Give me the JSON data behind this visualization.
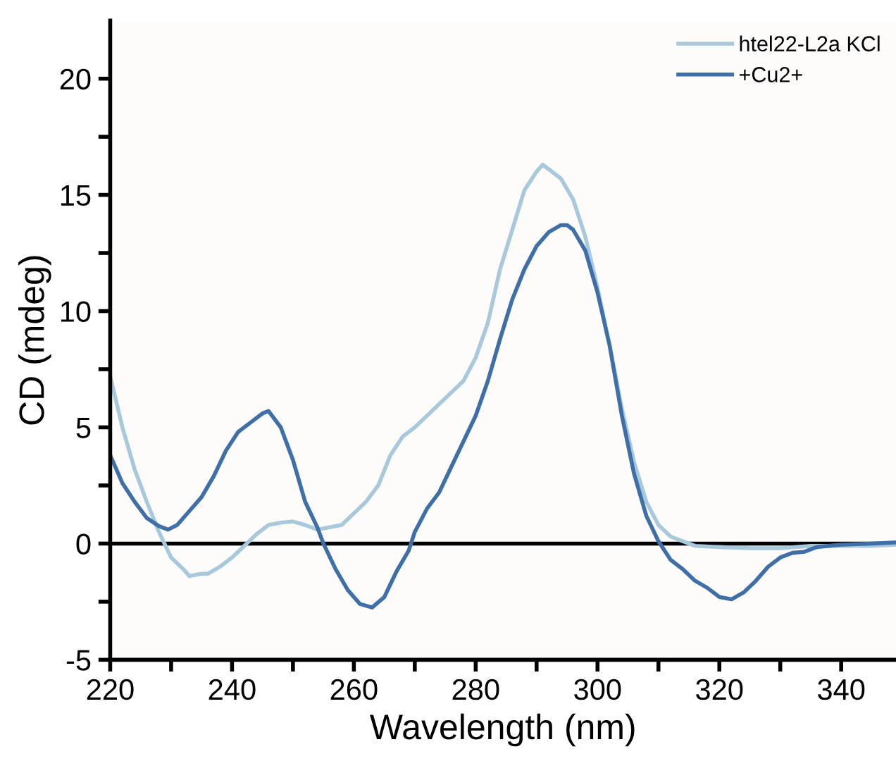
{
  "chart_data": {
    "type": "line",
    "xlabel": "Wavelength (nm)",
    "ylabel": "CD (mdeg)",
    "xlim": [
      220,
      349
    ],
    "ylim": [
      -5,
      22.5
    ],
    "xticks": [
      220,
      {
        "value": 230,
        "label": null
      },
      240,
      {
        "value": 250,
        "label": null
      },
      260,
      {
        "value": 270,
        "label": null
      },
      280,
      {
        "value": 290,
        "label": null
      },
      300,
      {
        "value": 310,
        "label": null
      },
      320,
      {
        "value": 330,
        "label": null
      },
      340
    ],
    "yticks": [
      -5,
      {
        "value": -2.5,
        "label": null
      },
      0,
      {
        "value": 2.5,
        "label": null
      },
      5,
      {
        "value": 7.5,
        "label": null
      },
      10,
      {
        "value": 12.5,
        "label": null
      },
      15,
      {
        "value": 17.5,
        "label": null
      },
      20
    ],
    "grid": false,
    "legend": "top right",
    "marker": "none",
    "line_style": "solid",
    "ref_lines": [
      {
        "axis": "y",
        "value": 0,
        "color": "#000000"
      }
    ],
    "series": [
      {
        "name": "htel22-L2a KCl",
        "color": "#a8c8dc",
        "x": [
          220,
          222,
          224,
          226,
          228,
          230,
          232,
          233,
          235,
          236,
          238,
          240,
          242,
          244,
          246,
          248,
          250,
          252,
          254,
          256,
          258,
          260,
          262,
          264,
          266,
          268,
          270,
          272,
          274,
          276,
          278,
          280,
          282,
          284,
          286,
          288,
          290,
          291,
          292,
          294,
          296,
          298,
          300,
          302,
          304,
          306,
          308,
          310,
          312,
          314,
          316,
          320,
          325,
          330,
          335,
          340,
          345,
          349
        ],
        "values": [
          7.2,
          5,
          3.2,
          1.8,
          0.5,
          -0.6,
          -1.1,
          -1.4,
          -1.3,
          -1.3,
          -1.0,
          -0.6,
          -0.1,
          0.4,
          0.8,
          0.9,
          0.95,
          0.8,
          0.6,
          0.7,
          0.8,
          1.3,
          1.8,
          2.5,
          3.8,
          4.6,
          5.0,
          5.5,
          6.0,
          6.5,
          7.0,
          8.0,
          9.5,
          11.8,
          13.5,
          15.2,
          16.0,
          16.3,
          16.1,
          15.7,
          14.8,
          13.2,
          11.0,
          8.5,
          5.8,
          3.5,
          1.8,
          0.8,
          0.3,
          0.1,
          -0.1,
          -0.15,
          -0.2,
          -0.2,
          -0.1,
          -0.1,
          -0.1,
          -0.05
        ]
      },
      {
        "name": "+Cu2+",
        "color": "#3f6fa8",
        "x": [
          220,
          222,
          224,
          226,
          228,
          229.5,
          231,
          233,
          235,
          237,
          239,
          241,
          243,
          245,
          246,
          248,
          250,
          252,
          254,
          255,
          257,
          259,
          261,
          263,
          265,
          267,
          269,
          270,
          272,
          274,
          276,
          278,
          280,
          282,
          284,
          286,
          288,
          290,
          292,
          294,
          295,
          296,
          298,
          300,
          302,
          304,
          306,
          308,
          310,
          312,
          314,
          316,
          318,
          320,
          322,
          324,
          326,
          328,
          330,
          332,
          334,
          336,
          340,
          345,
          349
        ],
        "values": [
          3.8,
          2.6,
          1.8,
          1.1,
          0.75,
          0.6,
          0.8,
          1.4,
          2.0,
          2.9,
          4.0,
          4.8,
          5.2,
          5.6,
          5.7,
          5.0,
          3.6,
          1.8,
          0.7,
          0.0,
          -1.1,
          -2.0,
          -2.6,
          -2.75,
          -2.3,
          -1.2,
          -0.3,
          0.5,
          1.5,
          2.2,
          3.3,
          4.4,
          5.5,
          7.0,
          8.8,
          10.5,
          11.8,
          12.8,
          13.4,
          13.7,
          13.7,
          13.5,
          12.6,
          10.8,
          8.5,
          5.5,
          3.0,
          1.2,
          0.1,
          -0.7,
          -1.1,
          -1.6,
          -1.9,
          -2.3,
          -2.4,
          -2.1,
          -1.6,
          -1.0,
          -0.6,
          -0.4,
          -0.35,
          -0.15,
          -0.05,
          0.0,
          0.05
        ]
      }
    ]
  }
}
